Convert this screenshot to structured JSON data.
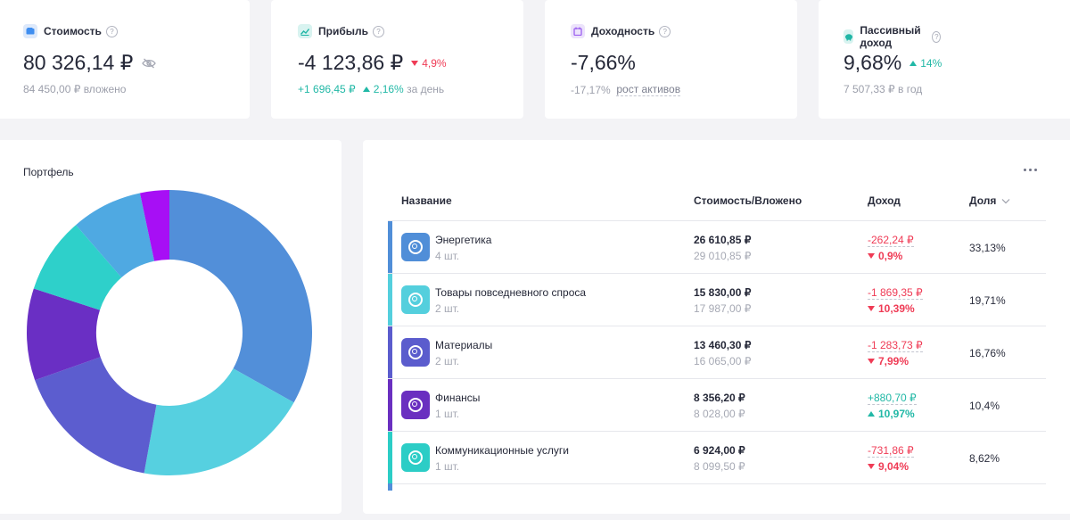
{
  "stats": [
    {
      "title": "Стоимость",
      "value": "80 326,14 ₽",
      "sub_value": "84 450,00 ₽",
      "sub_label": "вложено",
      "icon": "wallet-icon",
      "icon_bg": "#dde9fb",
      "icon_color": "#3f8ef0"
    },
    {
      "title": "Прибыль",
      "value": "-4 123,86 ₽",
      "delta": "4,9%",
      "sub_value": "+1 696,45 ₽",
      "sub_delta": "2,16%",
      "sub_label": "за день",
      "icon": "chart-icon",
      "icon_bg": "#d8f3f0",
      "icon_color": "#20b6a6"
    },
    {
      "title": "Доходность",
      "value": "-7,66%",
      "sub_value": "-17,17%",
      "sub_label": "рост активов",
      "icon": "calendar-icon",
      "icon_bg": "#ece3fb",
      "icon_color": "#9c5ff0"
    },
    {
      "title": "Пассивный доход",
      "value": "9,68%",
      "delta": "14%",
      "sub_value": "7 507,33 ₽",
      "sub_label": "в год",
      "icon": "piggy-bank-icon",
      "icon_bg": "#d8f3f0",
      "icon_color": "#20b6a6"
    }
  ],
  "portfolio": {
    "title": "Портфель"
  },
  "table": {
    "headers": {
      "name": "Название",
      "value": "Стоимость/Вложено",
      "income": "Доход",
      "share": "Доля"
    },
    "rows": [
      {
        "name": "Энергетика",
        "count": "4 шт.",
        "value": "26 610,85 ₽",
        "invested": "29 010,85 ₽",
        "income": "-262,24 ₽",
        "pct": "0,9%",
        "dir": "down",
        "share": "33,13%",
        "color": "#508ed8"
      },
      {
        "name": "Товары повседневного спроса",
        "count": "2 шт.",
        "value": "15 830,00 ₽",
        "invested": "17 987,00 ₽",
        "income": "-1 869,35 ₽",
        "pct": "10,39%",
        "dir": "down",
        "share": "19,71%",
        "color": "#54cfdd"
      },
      {
        "name": "Материалы",
        "count": "2 шт.",
        "value": "13 460,30 ₽",
        "invested": "16 065,00 ₽",
        "income": "-1 283,73 ₽",
        "pct": "7,99%",
        "dir": "down",
        "share": "16,76%",
        "color": "#5b5ccd"
      },
      {
        "name": "Финансы",
        "count": "1 шт.",
        "value": "8 356,20 ₽",
        "invested": "8 028,00 ₽",
        "income": "+880,70 ₽",
        "pct": "10,97%",
        "dir": "up",
        "share": "10,4%",
        "color": "#6a2fc0"
      },
      {
        "name": "Коммуникационные услуги",
        "count": "1 шт.",
        "value": "6 924,00 ₽",
        "invested": "8 099,50 ₽",
        "income": "-731,86 ₽",
        "pct": "9,04%",
        "dir": "down",
        "share": "8,62%",
        "color": "#2ccdc6"
      }
    ]
  },
  "chart_data": {
    "type": "pie",
    "title": "Портфель",
    "values": [
      33.13,
      19.71,
      16.76,
      10.4,
      8.62,
      8.07,
      3.31
    ],
    "colors": [
      "#528fd9",
      "#56d0e0",
      "#5c5dcf",
      "#6a2fc4",
      "#2ed0ca",
      "#4fa9e2",
      "#a70ff5"
    ]
  }
}
